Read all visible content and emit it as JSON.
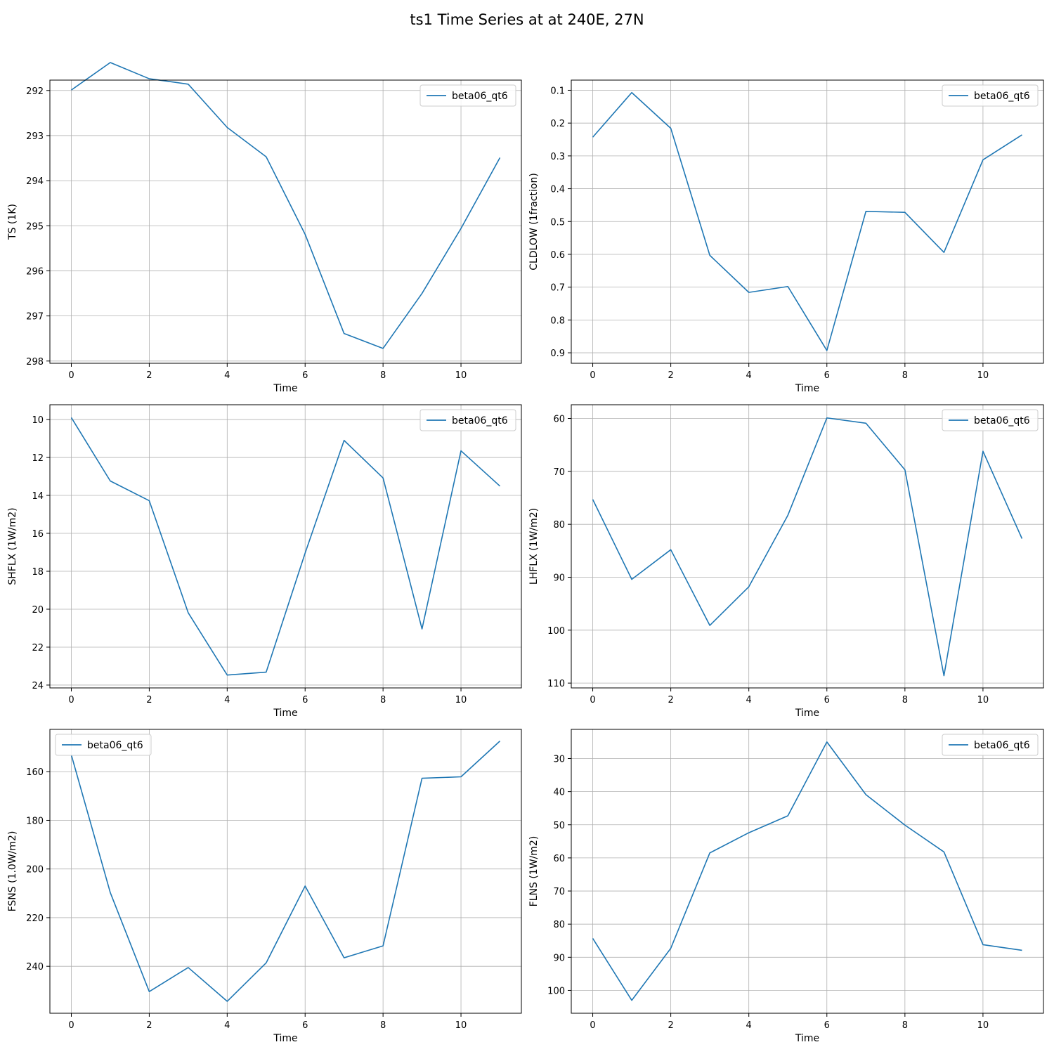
{
  "suptitle": "ts1 Time Series at at 240E, 27N",
  "colors": {
    "series": "#1f77b4",
    "grid": "#b0b0b0",
    "axes": "#000000"
  },
  "chart_data": [
    {
      "type": "line",
      "xlabel": "Time",
      "ylabel": "TS (1K)",
      "x": [
        0,
        1,
        2,
        3,
        4,
        5,
        6,
        7,
        8,
        9,
        10,
        11
      ],
      "xlim": [
        -0.55,
        11.55
      ],
      "ylim": [
        298.05,
        291.77
      ],
      "y_inverted": true,
      "xticks": [
        0,
        2,
        4,
        6,
        8,
        10
      ],
      "yticks": [
        292,
        293,
        294,
        295,
        296,
        297,
        298
      ],
      "grid": true,
      "legend_loc": "upper right",
      "series": [
        {
          "name": "beta06_qt6",
          "values": [
            291.99,
            291.38,
            291.74,
            291.86,
            292.82,
            293.47,
            295.19,
            297.39,
            297.72,
            296.5,
            295.06,
            293.49
          ]
        }
      ]
    },
    {
      "type": "line",
      "xlabel": "Time",
      "ylabel": "CLDLOW (1fraction)",
      "x": [
        0,
        1,
        2,
        3,
        4,
        5,
        6,
        7,
        8,
        9,
        10,
        11
      ],
      "xlim": [
        -0.55,
        11.55
      ],
      "ylim": [
        0.932,
        0.069
      ],
      "y_inverted": true,
      "xticks": [
        0,
        2,
        4,
        6,
        8,
        10
      ],
      "yticks": [
        0.1,
        0.2,
        0.3,
        0.4,
        0.5,
        0.6,
        0.7,
        0.8,
        0.9
      ],
      "grid": true,
      "legend_loc": "upper right",
      "series": [
        {
          "name": "beta06_qt6",
          "values": [
            0.243,
            0.107,
            0.216,
            0.603,
            0.716,
            0.698,
            0.893,
            0.469,
            0.472,
            0.594,
            0.312,
            0.236
          ]
        }
      ]
    },
    {
      "type": "line",
      "xlabel": "Time",
      "ylabel": "SHFLX (1W/m2)",
      "x": [
        0,
        1,
        2,
        3,
        4,
        5,
        6,
        7,
        8,
        9,
        10,
        11
      ],
      "xlim": [
        -0.55,
        11.55
      ],
      "ylim": [
        24.15,
        9.22
      ],
      "y_inverted": true,
      "xticks": [
        0,
        2,
        4,
        6,
        8,
        10
      ],
      "yticks": [
        10,
        12,
        14,
        16,
        18,
        20,
        22,
        24
      ],
      "grid": true,
      "legend_loc": "upper right",
      "series": [
        {
          "name": "beta06_qt6",
          "values": [
            9.9,
            13.24,
            14.28,
            20.19,
            23.47,
            23.32,
            17.04,
            11.1,
            13.08,
            21.04,
            11.65,
            13.51
          ]
        }
      ]
    },
    {
      "type": "line",
      "xlabel": "Time",
      "ylabel": "LHFLX (1W/m2)",
      "x": [
        0,
        1,
        2,
        3,
        4,
        5,
        6,
        7,
        8,
        9,
        10,
        11
      ],
      "xlim": [
        -0.55,
        11.55
      ],
      "ylim": [
        110.91,
        57.41
      ],
      "y_inverted": true,
      "xticks": [
        0,
        2,
        4,
        6,
        8,
        10
      ],
      "yticks": [
        60,
        70,
        80,
        90,
        100,
        110
      ],
      "grid": true,
      "legend_loc": "upper right",
      "series": [
        {
          "name": "beta06_qt6",
          "values": [
            75.3,
            90.4,
            84.8,
            99.1,
            91.8,
            78.3,
            59.9,
            60.9,
            69.7,
            108.6,
            66.2,
            82.7
          ]
        }
      ]
    },
    {
      "type": "line",
      "xlabel": "Time",
      "ylabel": "FSNS (1.0W/m2)",
      "x": [
        0,
        1,
        2,
        3,
        4,
        5,
        6,
        7,
        8,
        9,
        10,
        11
      ],
      "xlim": [
        -0.55,
        11.55
      ],
      "ylim": [
        259.3,
        142.6
      ],
      "y_inverted": true,
      "xticks": [
        0,
        2,
        4,
        6,
        8,
        10
      ],
      "yticks": [
        160,
        180,
        200,
        220,
        240
      ],
      "grid": true,
      "legend_loc": "upper left",
      "series": [
        {
          "name": "beta06_qt6",
          "values": [
            153.1,
            209.7,
            250.4,
            240.5,
            254.4,
            238.6,
            207.0,
            236.5,
            231.6,
            162.7,
            162.1,
            147.4
          ]
        }
      ]
    },
    {
      "type": "line",
      "xlabel": "Time",
      "ylabel": "FLNS (1W/m2)",
      "x": [
        0,
        1,
        2,
        3,
        4,
        5,
        6,
        7,
        8,
        9,
        10,
        11
      ],
      "xlim": [
        -0.55,
        11.55
      ],
      "ylim": [
        106.9,
        21.2
      ],
      "y_inverted": true,
      "xticks": [
        0,
        2,
        4,
        6,
        8,
        10
      ],
      "yticks": [
        30,
        40,
        50,
        60,
        70,
        80,
        90,
        100
      ],
      "grid": true,
      "legend_loc": "upper right",
      "series": [
        {
          "name": "beta06_qt6",
          "values": [
            84.3,
            103.0,
            87.3,
            58.5,
            52.4,
            47.3,
            25.0,
            40.9,
            50.1,
            58.2,
            86.2,
            87.9
          ]
        }
      ]
    }
  ]
}
